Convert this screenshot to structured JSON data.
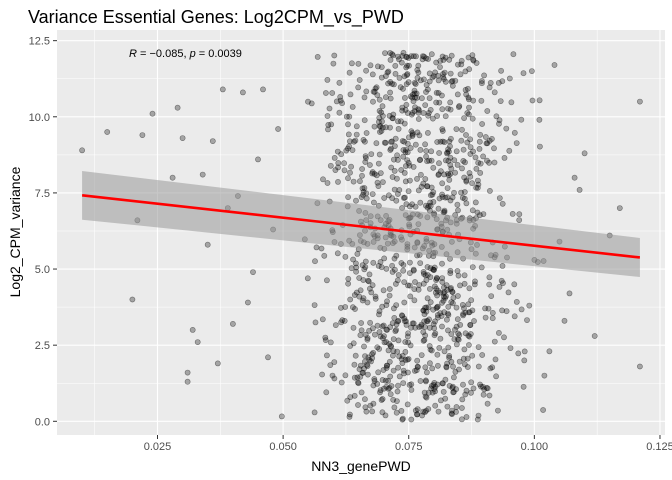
{
  "chart_data": {
    "type": "scatter",
    "title": "Variance Essential Genes: Log2CPM_vs_PWD",
    "xlabel": "NN3_genePWD",
    "ylabel": "Log2_CPM_variance",
    "xlim": [
      0.005,
      0.126
    ],
    "ylim": [
      -0.45,
      12.85
    ],
    "x_ticks": [
      0.025,
      0.05,
      0.075,
      0.1,
      0.125
    ],
    "x_tick_labels": [
      "0.025",
      "0.050",
      "0.075",
      "0.100",
      "0.125"
    ],
    "y_ticks": [
      0.0,
      2.5,
      5.0,
      7.5,
      10.0,
      12.5
    ],
    "y_tick_labels": [
      "0.0",
      "2.5",
      "5.0",
      "7.5",
      "10.0",
      "12.5"
    ],
    "annotation": {
      "r_label": "R",
      "r_value": " = −0.085, ",
      "p_label": "p",
      "p_value": " = 0.0039"
    },
    "grid": true,
    "colors": {
      "panel": "#ebebeb",
      "grid": "#ffffff",
      "points": "#000000",
      "regression_line": "#ff0000",
      "confidence_band": "#999999"
    },
    "regression": {
      "x": [
        0.01,
        0.121
      ],
      "y": [
        7.42,
        5.38
      ],
      "ci_upper": [
        8.22,
        6.02
      ],
      "ci_lower": [
        6.62,
        4.74
      ]
    },
    "points": {
      "x": [
        0.01,
        0.015,
        0.02,
        0.021,
        0.022,
        0.024,
        0.028,
        0.029,
        0.03,
        0.031,
        0.031,
        0.032,
        0.033,
        0.034,
        0.035,
        0.036,
        0.037,
        0.038,
        0.039,
        0.04,
        0.041,
        0.042,
        0.043,
        0.044,
        0.045,
        0.046,
        0.047,
        0.048,
        0.049,
        0.101,
        0.103,
        0.106,
        0.108,
        0.11,
        0.112,
        0.115,
        0.117,
        0.121,
        0.121,
        0.099,
        0.1,
        0.102,
        0.104,
        0.107,
        0.109,
        0.105,
        0.098,
        0.097,
        0.096
      ],
      "y": [
        8.9,
        9.5,
        4.0,
        6.6,
        9.4,
        10.1,
        8.0,
        10.3,
        9.3,
        1.6,
        1.3,
        3.0,
        2.6,
        8.1,
        5.8,
        9.2,
        1.9,
        10.9,
        7.0,
        3.2,
        7.4,
        10.8,
        3.9,
        4.9,
        8.6,
        10.9,
        2.1,
        6.3,
        9.6,
        9.9,
        2.3,
        3.3,
        8.0,
        8.8,
        2.8,
        6.1,
        7.0,
        1.8,
        10.5,
        3.8,
        5.3,
        1.5,
        11.7,
        4.2,
        7.6,
        5.9,
        2.0,
        6.8,
        4.5
      ]
    },
    "cloud": {
      "count": 1150,
      "x_mean": 0.0765,
      "x_sd": 0.0105,
      "y_min": 0.05,
      "y_max": 12.1
    }
  }
}
